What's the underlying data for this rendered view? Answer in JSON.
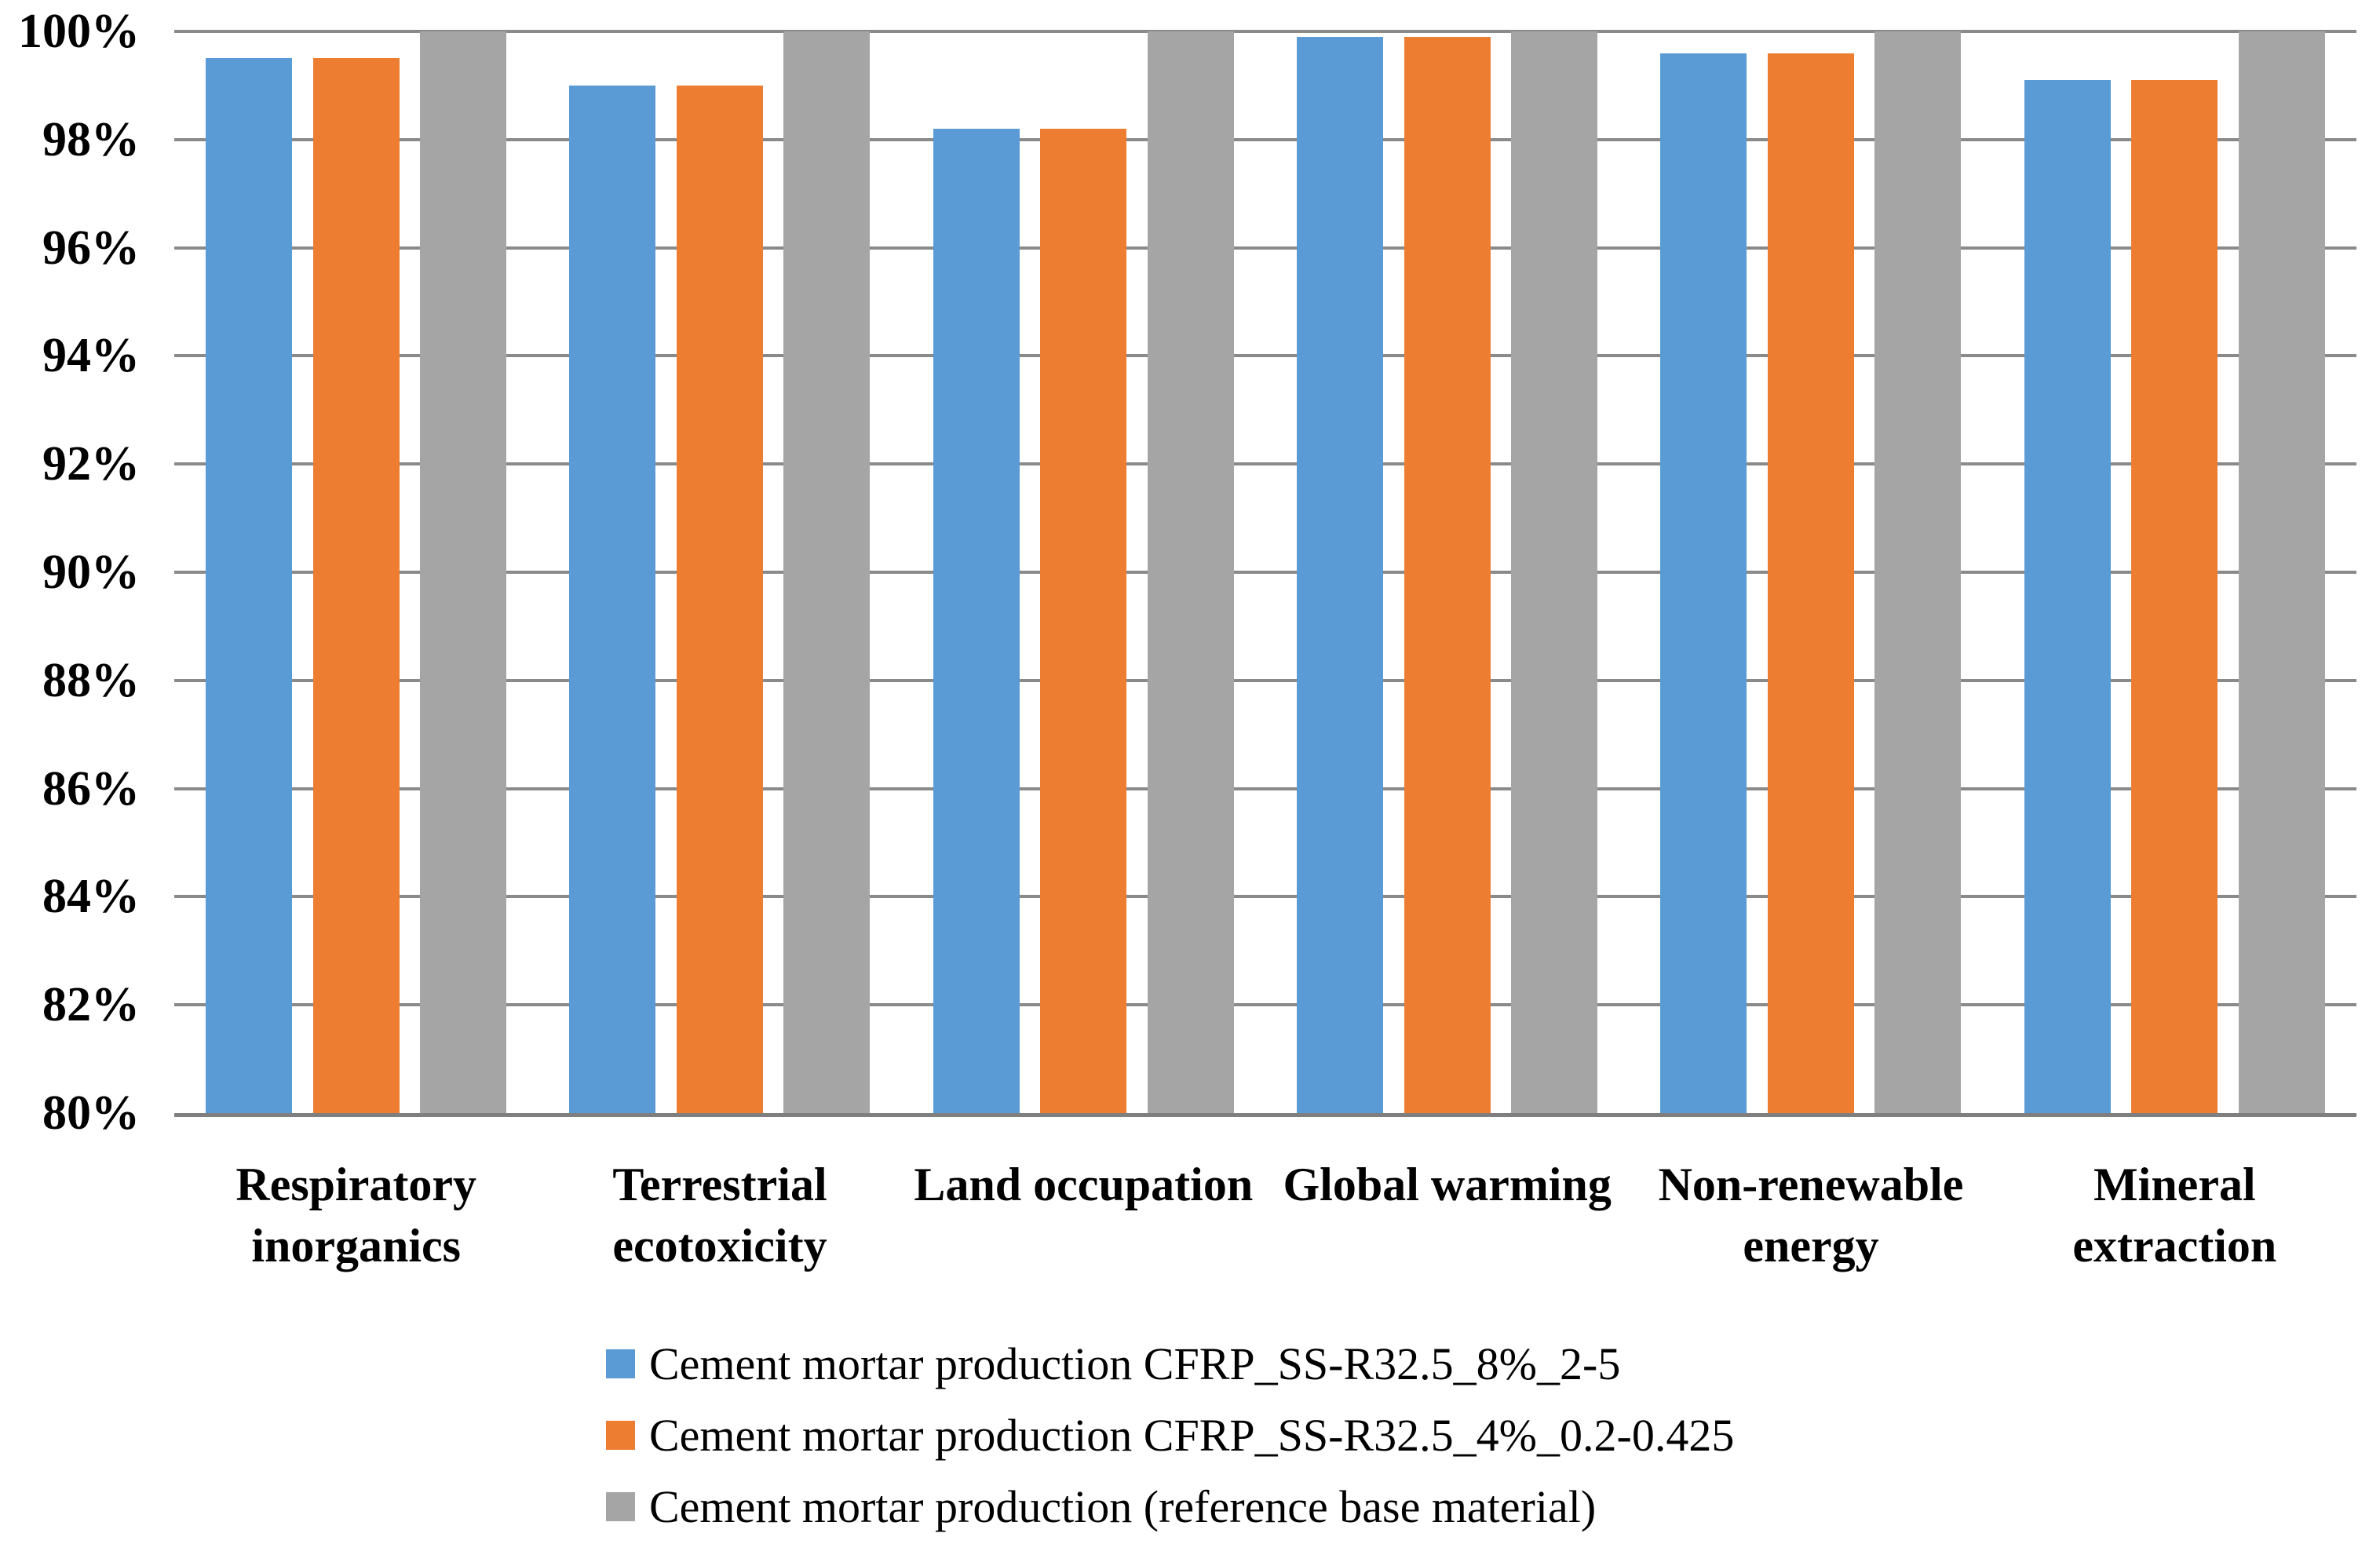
{
  "chart_data": {
    "type": "bar",
    "title": "",
    "categories": [
      "Respiratory\ninorganics",
      "Terrestrial\necotoxicity",
      "Land occupation",
      "Global warming",
      "Non-renewable\nenergy",
      "Mineral\nextraction"
    ],
    "series": [
      {
        "name": "Cement mortar production CFRP_SS-R32.5_8%_2-5",
        "color": "#5B9BD5",
        "values": [
          99.5,
          99.0,
          98.2,
          99.9,
          99.6,
          99.1
        ]
      },
      {
        "name": "Cement mortar production CFRP_SS-R32.5_4%_0.2-0.425",
        "color": "#ED7D31",
        "values": [
          99.5,
          99.0,
          98.2,
          99.9,
          99.6,
          99.1
        ]
      },
      {
        "name": "Cement mortar production (reference base material)",
        "color": "#A5A5A5",
        "values": [
          100,
          100,
          100,
          100,
          100,
          100
        ]
      }
    ],
    "y_axis": {
      "min": 80,
      "max": 100,
      "step": 2,
      "tick_labels": [
        "100%",
        "98%",
        "96%",
        "94%",
        "92%",
        "90%",
        "88%",
        "86%",
        "84%",
        "82%",
        "80%"
      ]
    },
    "grid": true,
    "gridline_color": "#8A8A8A",
    "axis_line_color": "#7F7F7F",
    "legend_position": "bottom"
  }
}
